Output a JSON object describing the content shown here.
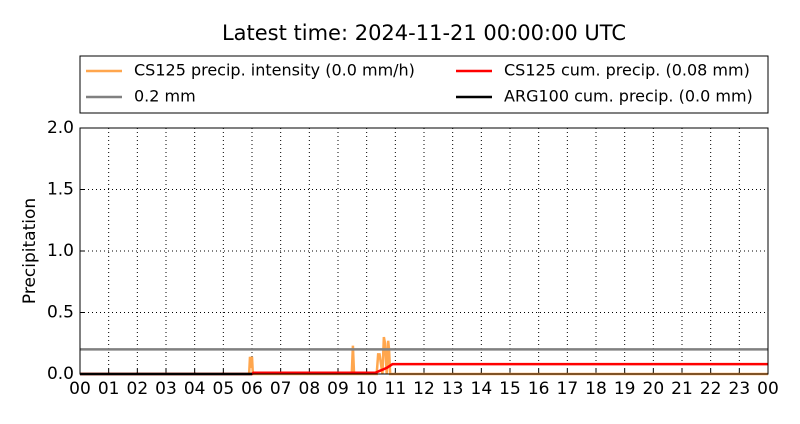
{
  "chart_data": {
    "type": "line",
    "title": "Latest time: 2024-11-21 00:00:00 UTC",
    "ylabel": "Precipitation",
    "xlim": [
      0,
      24
    ],
    "ylim": [
      0,
      2.0
    ],
    "xticks": [
      {
        "value": 0,
        "label": "00"
      },
      {
        "value": 1,
        "label": "01"
      },
      {
        "value": 2,
        "label": "02"
      },
      {
        "value": 3,
        "label": "03"
      },
      {
        "value": 4,
        "label": "04"
      },
      {
        "value": 5,
        "label": "05"
      },
      {
        "value": 6,
        "label": "06"
      },
      {
        "value": 7,
        "label": "07"
      },
      {
        "value": 8,
        "label": "08"
      },
      {
        "value": 9,
        "label": "09"
      },
      {
        "value": 10,
        "label": "10"
      },
      {
        "value": 11,
        "label": "11"
      },
      {
        "value": 12,
        "label": "12"
      },
      {
        "value": 13,
        "label": "13"
      },
      {
        "value": 14,
        "label": "14"
      },
      {
        "value": 15,
        "label": "15"
      },
      {
        "value": 16,
        "label": "16"
      },
      {
        "value": 17,
        "label": "17"
      },
      {
        "value": 18,
        "label": "18"
      },
      {
        "value": 19,
        "label": "19"
      },
      {
        "value": 20,
        "label": "20"
      },
      {
        "value": 21,
        "label": "21"
      },
      {
        "value": 22,
        "label": "22"
      },
      {
        "value": 23,
        "label": "23"
      },
      {
        "value": 24,
        "label": "00"
      }
    ],
    "yticks": [
      {
        "value": 0,
        "label": "0.0"
      },
      {
        "value": 0.5,
        "label": "0.5"
      },
      {
        "value": 1,
        "label": "1.0"
      },
      {
        "value": 1.5,
        "label": "1.5"
      },
      {
        "value": 2,
        "label": "2.0"
      }
    ],
    "grid": true,
    "series": [
      {
        "name": "CS125 precip. intensity (0.0 mm/h)",
        "color": "#ffa64d",
        "x": [
          0,
          5.9,
          5.93,
          5.96,
          6.0,
          6.03,
          6.1,
          9.48,
          9.52,
          9.56,
          10.35,
          10.4,
          10.45,
          10.55,
          10.6,
          10.64,
          10.7,
          10.75,
          10.78,
          10.82,
          10.9,
          24
        ],
        "values": [
          0,
          0,
          0.14,
          0.05,
          0.14,
          0,
          0,
          0,
          0.23,
          0,
          0,
          0.16,
          0.16,
          0,
          0.3,
          0.25,
          0,
          0.27,
          0.2,
          0,
          0,
          0
        ]
      },
      {
        "name": "0.2 mm",
        "color": "#808080",
        "x": [
          0,
          24
        ],
        "values": [
          0.2,
          0.2
        ]
      },
      {
        "name": "CS125 cum. precip. (0.08 mm)",
        "color": "#ff0000",
        "x": [
          0,
          6.0,
          6.05,
          10.3,
          10.5,
          10.7,
          10.9,
          24
        ],
        "values": [
          0,
          0,
          0.01,
          0.01,
          0.03,
          0.05,
          0.08,
          0.08
        ]
      },
      {
        "name": "ARG100 cum. precip. (0.0 mm)",
        "color": "#000000",
        "x": [
          0,
          6.0
        ],
        "values": [
          0,
          0
        ]
      }
    ]
  }
}
